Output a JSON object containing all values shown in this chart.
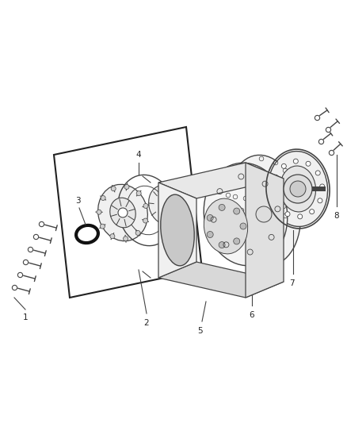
{
  "bg_color": "#ffffff",
  "line_color": "#444444",
  "dark_color": "#222222",
  "gray_color": "#888888",
  "fig_width": 4.38,
  "fig_height": 5.33,
  "dpi": 100
}
